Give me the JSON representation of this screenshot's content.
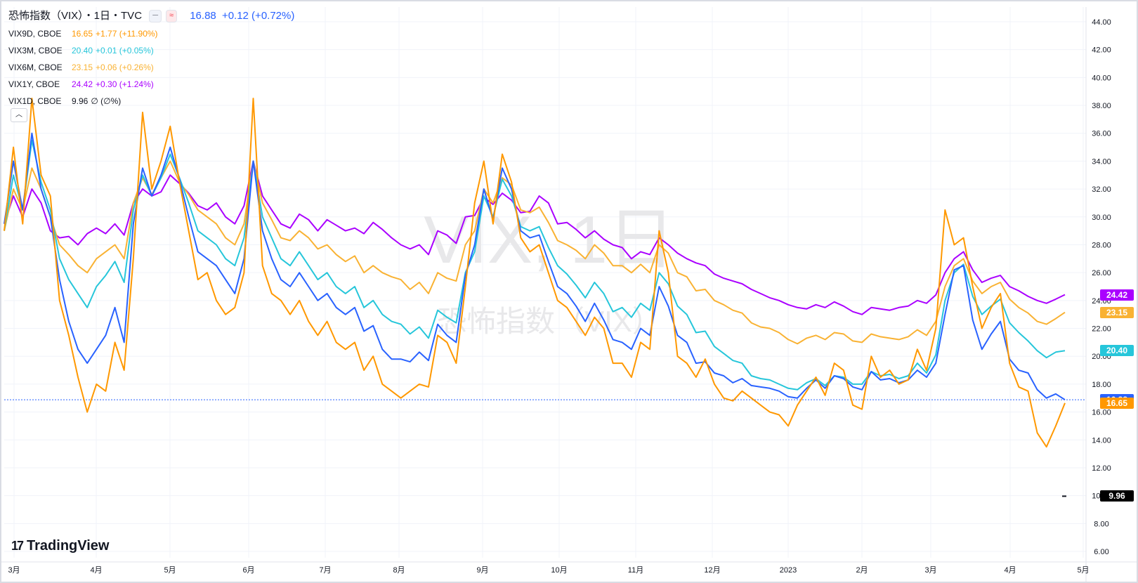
{
  "header": {
    "title": "恐怖指数（VIX）・1日・TVC",
    "chip1": "─",
    "chip2": "≈",
    "main_value": "16.88",
    "main_change": "+0.12 (+0.72%)"
  },
  "legend": [
    {
      "symbol": "VIX9D, CBOE",
      "value": "16.65",
      "change": "+1.77 (+11.90%)",
      "color": "#ff9800"
    },
    {
      "symbol": "VIX3M, CBOE",
      "value": "20.40",
      "change": "+0.01 (+0.05%)",
      "color": "#26c6da"
    },
    {
      "symbol": "VIX6M, CBOE",
      "value": "23.15",
      "change": "+0.06 (+0.26%)",
      "color": "#f9b233"
    },
    {
      "symbol": "VIX1Y, CBOE",
      "value": "24.42",
      "change": "+0.30 (+1.24%)",
      "color": "#aa00ff"
    },
    {
      "symbol": "VIX1D, CBOE",
      "value": "9.96",
      "change": "∅ (∅%)",
      "color": "#131722"
    }
  ],
  "watermark": {
    "line1": "VIX, 1日",
    "line2": "恐怖指数（VIX）"
  },
  "logo": {
    "mark": "17",
    "text": "TradingView"
  },
  "collapse_icon": "chevron-up-icon",
  "price_tags": [
    {
      "text": "24.42",
      "value": 24.42,
      "color": "#aa00ff"
    },
    {
      "text": "23.15",
      "value": 23.15,
      "color": "#f9b233"
    },
    {
      "text": "20.40",
      "value": 20.4,
      "color": "#26c6da"
    },
    {
      "text": "16.88",
      "value": 16.88,
      "color": "#2962ff"
    },
    {
      "text": "16.65",
      "value": 16.65,
      "color": "#ff9800"
    },
    {
      "text": "9.96",
      "value": 9.96,
      "color": "#000000"
    }
  ],
  "chart_data": {
    "type": "line",
    "x_ticks": [
      "3月",
      "4月",
      "5月",
      "6月",
      "7月",
      "8月",
      "9月",
      "10月",
      "11月",
      "12月",
      "2023",
      "2月",
      "3月",
      "4月",
      "5月"
    ],
    "y_ticks": [
      "6.00",
      "8.00",
      "10.00",
      "12.00",
      "14.00",
      "16.00",
      "18.00",
      "20.00",
      "22.00",
      "24.00",
      "26.00",
      "28.00",
      "30.00",
      "32.00",
      "34.00",
      "36.00",
      "38.00",
      "40.00",
      "42.00",
      "44.00"
    ],
    "ylim": [
      6,
      44
    ],
    "reference_line": 16.88,
    "series": [
      {
        "name": "VIX1Y, CBOE",
        "color": "#aa00ff",
        "values": [
          29.5,
          31.5,
          30.0,
          32.0,
          31.0,
          29.0,
          28.5,
          28.6,
          28.0,
          28.8,
          29.2,
          28.8,
          29.5,
          28.7,
          31.0,
          32.0,
          31.5,
          31.8,
          33.0,
          32.4,
          31.7,
          30.8,
          30.5,
          31.0,
          30.0,
          29.5,
          30.8,
          34.0,
          31.5,
          30.5,
          29.5,
          29.2,
          30.2,
          29.8,
          29.0,
          29.8,
          29.4,
          29.0,
          29.2,
          28.8,
          29.6,
          29.1,
          28.5,
          28.0,
          27.7,
          28.0,
          27.3,
          29.0,
          28.7,
          28.1,
          30.0,
          30.1,
          31.4,
          30.9,
          31.7,
          31.2,
          30.3,
          30.4,
          31.5,
          31.0,
          29.5,
          29.6,
          29.1,
          28.5,
          29.0,
          28.4,
          28.0,
          27.8,
          27.0,
          27.5,
          27.3,
          28.5,
          28.0,
          27.4,
          27.0,
          26.7,
          26.5,
          25.9,
          25.6,
          25.4,
          25.2,
          24.8,
          24.5,
          24.2,
          24.0,
          23.7,
          23.5,
          23.4,
          23.7,
          23.5,
          23.9,
          23.6,
          23.2,
          23.0,
          23.5,
          23.4,
          23.3,
          23.5,
          23.6,
          24.0,
          23.8,
          24.4,
          26.0,
          27.0,
          27.5,
          26.2,
          25.3,
          25.6,
          25.8,
          25.0,
          24.7,
          24.3,
          24.0,
          23.8,
          24.1,
          24.42
        ]
      },
      {
        "name": "VIX6M, CBOE",
        "color": "#f9b233",
        "values": [
          29.0,
          32.0,
          30.5,
          33.5,
          32.0,
          30.0,
          28.0,
          27.3,
          26.5,
          26.0,
          27.0,
          27.5,
          28.0,
          27.0,
          31.0,
          32.8,
          31.6,
          32.8,
          34.0,
          32.5,
          31.6,
          30.5,
          30.0,
          29.5,
          28.5,
          28.0,
          29.5,
          34.0,
          31.0,
          29.8,
          28.5,
          28.3,
          29.0,
          28.5,
          27.7,
          28.0,
          27.3,
          26.8,
          27.2,
          26.0,
          26.5,
          26.0,
          25.7,
          25.5,
          24.8,
          25.3,
          24.5,
          26.0,
          25.6,
          25.4,
          28.0,
          29.0,
          32.0,
          31.0,
          32.8,
          32.3,
          30.5,
          30.3,
          30.7,
          29.6,
          28.3,
          28.0,
          27.6,
          27.0,
          28.0,
          27.4,
          26.5,
          26.5,
          26.0,
          26.6,
          26.0,
          28.0,
          27.4,
          26.0,
          25.7,
          24.7,
          24.8,
          24.0,
          23.7,
          23.3,
          23.1,
          22.4,
          22.1,
          22.0,
          21.7,
          21.2,
          20.9,
          21.3,
          21.5,
          21.2,
          21.7,
          21.6,
          21.1,
          21.0,
          21.6,
          21.4,
          21.3,
          21.2,
          21.4,
          21.9,
          21.5,
          22.5,
          25.0,
          26.5,
          27.0,
          25.4,
          24.5,
          25.0,
          25.3,
          24.1,
          23.5,
          23.1,
          22.5,
          22.3,
          22.7,
          23.15
        ]
      },
      {
        "name": "VIX3M, CBOE",
        "color": "#26c6da",
        "values": [
          29.0,
          33.0,
          30.5,
          35.5,
          32.5,
          30.5,
          27.0,
          25.5,
          24.5,
          23.5,
          25.0,
          25.8,
          26.8,
          25.3,
          30.5,
          33.0,
          31.5,
          32.8,
          34.5,
          32.8,
          31.0,
          29.0,
          28.5,
          28.0,
          27.0,
          26.5,
          28.5,
          34.0,
          30.0,
          28.5,
          27.0,
          26.5,
          27.5,
          26.5,
          25.5,
          26.0,
          25.0,
          24.5,
          25.0,
          23.5,
          24.0,
          23.0,
          22.5,
          22.3,
          21.6,
          22.1,
          21.3,
          23.3,
          22.8,
          22.4,
          26.0,
          27.5,
          31.5,
          30.0,
          32.7,
          31.5,
          29.3,
          29.0,
          29.3,
          27.8,
          26.5,
          25.9,
          25.1,
          24.2,
          25.3,
          24.5,
          23.2,
          23.5,
          22.8,
          23.8,
          23.3,
          26.0,
          25.2,
          23.6,
          23.0,
          21.7,
          21.8,
          20.7,
          20.2,
          19.7,
          19.5,
          18.6,
          18.4,
          18.3,
          18.0,
          17.7,
          17.6,
          18.1,
          18.4,
          17.9,
          18.6,
          18.5,
          18.0,
          18.0,
          18.9,
          18.6,
          18.7,
          18.4,
          18.6,
          19.5,
          18.8,
          20.1,
          24.0,
          26.0,
          26.6,
          24.3,
          23.0,
          23.6,
          24.1,
          22.4,
          21.7,
          21.1,
          20.4,
          19.9,
          20.3,
          20.4
        ]
      },
      {
        "name": "恐怖指数（VIX）",
        "color": "#2962ff",
        "values": [
          29.5,
          34.0,
          30.5,
          36.0,
          32.0,
          30.0,
          25.5,
          22.5,
          20.5,
          19.5,
          20.5,
          21.5,
          23.5,
          21.0,
          29.5,
          33.5,
          31.5,
          33.0,
          35.0,
          32.7,
          30.0,
          27.5,
          27.0,
          26.5,
          25.5,
          24.5,
          27.0,
          34.0,
          29.0,
          27.0,
          25.5,
          25.0,
          26.0,
          25.0,
          24.0,
          24.5,
          23.5,
          23.0,
          23.5,
          21.8,
          22.2,
          20.5,
          19.8,
          19.8,
          19.6,
          20.3,
          19.7,
          22.3,
          21.5,
          21.0,
          25.8,
          28.0,
          32.0,
          29.8,
          33.5,
          32.0,
          29.0,
          28.5,
          28.7,
          26.8,
          25.0,
          24.5,
          23.6,
          22.5,
          23.8,
          22.6,
          21.2,
          21.0,
          20.5,
          22.0,
          21.5,
          25.0,
          23.6,
          21.5,
          21.0,
          19.5,
          19.6,
          18.8,
          18.6,
          18.1,
          18.4,
          17.9,
          17.8,
          17.7,
          17.5,
          17.1,
          17.0,
          17.7,
          18.3,
          17.7,
          18.6,
          18.4,
          17.8,
          17.6,
          18.9,
          18.3,
          18.4,
          18.1,
          18.3,
          19.0,
          18.5,
          19.5,
          23.0,
          26.2,
          26.5,
          22.6,
          20.5,
          21.6,
          22.5,
          19.8,
          19.0,
          18.8,
          17.6,
          17.0,
          17.3,
          16.88
        ]
      },
      {
        "name": "VIX9D, CBOE",
        "color": "#ff9800",
        "values": [
          29.0,
          35.0,
          29.5,
          38.5,
          33.0,
          31.5,
          24.0,
          21.5,
          18.5,
          16.0,
          18.0,
          17.5,
          21.0,
          19.0,
          27.0,
          37.5,
          32.0,
          34.0,
          36.5,
          32.5,
          29.0,
          25.5,
          26.0,
          24.0,
          23.0,
          23.5,
          26.0,
          38.5,
          26.5,
          24.5,
          24.0,
          23.0,
          24.0,
          22.5,
          21.5,
          22.5,
          21.0,
          20.5,
          21.0,
          19.0,
          20.0,
          18.0,
          17.5,
          17.0,
          17.5,
          18.0,
          17.8,
          21.5,
          21.0,
          19.5,
          25.0,
          31.0,
          34.0,
          29.5,
          34.5,
          32.5,
          28.5,
          27.5,
          28.0,
          26.0,
          24.0,
          23.5,
          22.5,
          21.5,
          22.8,
          22.0,
          19.5,
          19.5,
          18.5,
          21.0,
          20.5,
          29.0,
          26.0,
          20.0,
          19.5,
          18.5,
          19.8,
          18.0,
          17.0,
          16.8,
          17.5,
          17.0,
          16.5,
          16.0,
          15.8,
          15.0,
          16.5,
          17.5,
          18.5,
          17.2,
          19.5,
          19.0,
          16.5,
          16.2,
          20.0,
          18.5,
          19.0,
          18.0,
          18.3,
          20.5,
          19.0,
          22.0,
          30.5,
          28.0,
          28.5,
          25.0,
          22.0,
          23.5,
          24.5,
          19.5,
          17.8,
          17.5,
          14.5,
          13.5,
          15.0,
          16.65
        ]
      }
    ]
  }
}
